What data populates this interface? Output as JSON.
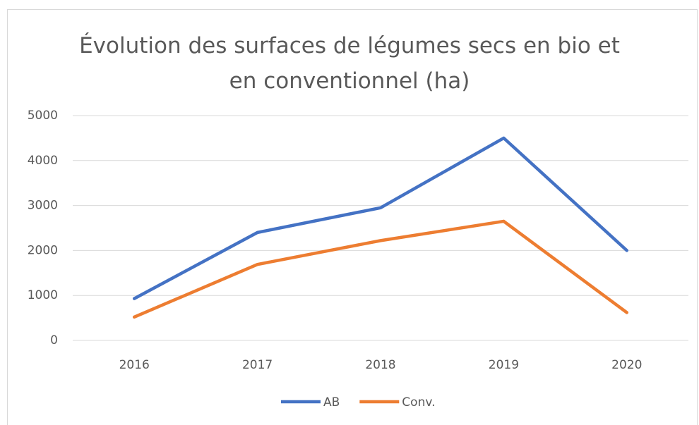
{
  "chart_data": {
    "type": "line",
    "title": "Évolution des surfaces de légumes secs en bio et en conventionnel (ha)",
    "categories": [
      "2016",
      "2017",
      "2018",
      "2019",
      "2020"
    ],
    "series": [
      {
        "name": "AB",
        "color": "#4472c4",
        "values": [
          930,
          2400,
          2950,
          4500,
          2000
        ]
      },
      {
        "name": "Conv.",
        "color": "#ed7d31",
        "values": [
          520,
          1690,
          2220,
          2650,
          620
        ]
      }
    ],
    "ylim": [
      0,
      5000
    ],
    "yticks": [
      0,
      1000,
      2000,
      3000,
      4000,
      5000
    ],
    "grid": true,
    "legend": "bottom"
  }
}
